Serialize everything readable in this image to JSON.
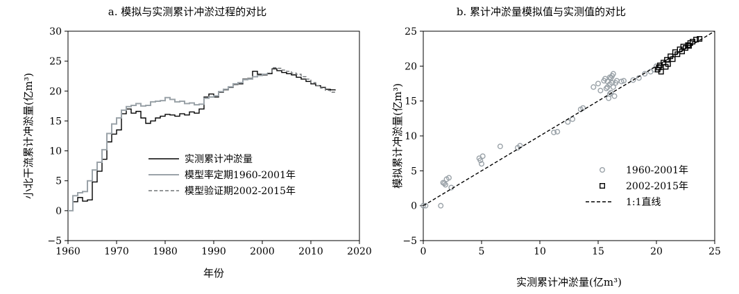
{
  "chart_data": [
    {
      "type": "line",
      "title": "a. 模拟与实测累计冲淤过程的对比",
      "xlabel": "年份",
      "ylabel": "小北干流累计冲淤量(亿m³)",
      "xlim": [
        1960,
        2020
      ],
      "ylim": [
        -5,
        30
      ],
      "xticks": [
        1960,
        1970,
        1980,
        1990,
        2000,
        2010,
        2020
      ],
      "yticks": [
        -5,
        0,
        5,
        10,
        15,
        20,
        25,
        30
      ],
      "legend_position": "center-right",
      "series": [
        {
          "name": "实测累计冲淤量",
          "color": "#000000",
          "style": "solid",
          "x": [
            1960,
            1961,
            1962,
            1963,
            1964,
            1965,
            1966,
            1967,
            1968,
            1969,
            1970,
            1971,
            1972,
            1973,
            1974,
            1975,
            1976,
            1977,
            1978,
            1979,
            1980,
            1981,
            1982,
            1983,
            1984,
            1985,
            1986,
            1987,
            1988,
            1989,
            1990,
            1991,
            1992,
            1993,
            1994,
            1995,
            1996,
            1997,
            1998,
            1999,
            2000,
            2001,
            2002,
            2003,
            2004,
            2005,
            2006,
            2007,
            2008,
            2009,
            2010,
            2011,
            2012,
            2013,
            2014,
            2015
          ],
          "y": [
            0.0,
            1.5,
            2.2,
            1.6,
            1.8,
            4.8,
            6.6,
            8.6,
            11.5,
            12.8,
            13.5,
            16.2,
            17.0,
            16.3,
            16.6,
            15.5,
            14.6,
            15.0,
            15.5,
            15.8,
            16.1,
            16.0,
            15.8,
            16.2,
            16.0,
            16.5,
            16.3,
            17.0,
            19.0,
            19.5,
            19.0,
            19.8,
            20.2,
            20.6,
            21.1,
            21.2,
            22.0,
            22.1,
            23.3,
            22.8,
            22.7,
            22.9,
            23.7,
            23.4,
            23.1,
            22.9,
            22.7,
            22.3,
            22.0,
            21.6,
            21.2,
            20.9,
            20.6,
            20.3,
            20.2,
            20.1
          ]
        },
        {
          "name": "模型率定期1960-2001年",
          "color": "#9aa2a8",
          "style": "solid",
          "x": [
            1960,
            1961,
            1962,
            1963,
            1964,
            1965,
            1966,
            1967,
            1968,
            1969,
            1970,
            1971,
            1972,
            1973,
            1974,
            1975,
            1976,
            1977,
            1978,
            1979,
            1980,
            1981,
            1982,
            1983,
            1984,
            1985,
            1986,
            1987,
            1988,
            1989,
            1990,
            1991,
            1992,
            1993,
            1994,
            1995,
            1996,
            1997,
            1998,
            1999,
            2000,
            2001
          ],
          "y": [
            0.0,
            2.5,
            3.0,
            3.2,
            5.0,
            6.8,
            8.1,
            10.2,
            12.9,
            14.5,
            15.5,
            16.8,
            17.4,
            17.6,
            17.9,
            17.5,
            17.6,
            18.2,
            18.3,
            18.4,
            18.9,
            18.6,
            18.2,
            18.3,
            17.9,
            18.0,
            17.7,
            17.8,
            18.8,
            19.0,
            19.2,
            19.9,
            20.3,
            20.7,
            21.2,
            21.4,
            21.9,
            22.0,
            22.4,
            22.6,
            22.8,
            23.0
          ]
        },
        {
          "name": "模型验证期2002-2015年",
          "color": "#6e7275",
          "style": "dashed",
          "x": [
            2001,
            2002,
            2003,
            2004,
            2005,
            2006,
            2007,
            2008,
            2009,
            2010,
            2011,
            2012,
            2013,
            2014,
            2015
          ],
          "y": [
            23.0,
            23.9,
            23.8,
            23.5,
            23.3,
            23.0,
            22.8,
            22.4,
            22.0,
            21.4,
            20.9,
            20.5,
            20.1,
            19.8,
            19.5
          ]
        }
      ]
    },
    {
      "type": "scatter",
      "title": "b. 累计冲淤量模拟值与实测值的对比",
      "xlabel": "实测累计冲淤量(亿m³)",
      "ylabel": "模拟累计冲淤量(亿m³)",
      "xlim": [
        0,
        25
      ],
      "ylim": [
        -5,
        25
      ],
      "xticks": [
        0,
        5,
        10,
        15,
        20,
        25
      ],
      "yticks": [
        -5,
        0,
        5,
        10,
        15,
        20,
        25
      ],
      "legend_position": "bottom-right",
      "series": [
        {
          "name": "1960-2001年",
          "color": "#9aa2a8",
          "marker": "circle",
          "x": [
            0.0,
            0.2,
            1.5,
            1.8,
            2.0,
            2.2,
            1.9,
            1.7,
            2.4,
            4.8,
            5.0,
            4.9,
            5.1,
            6.6,
            8.1,
            8.3,
            11.2,
            11.5,
            12.4,
            12.8,
            13.5,
            13.7,
            14.6,
            15.0,
            15.2,
            15.5,
            15.6,
            15.8,
            15.8,
            16.0,
            16.0,
            16.1,
            16.2,
            16.2,
            16.3,
            16.3,
            16.5,
            16.6,
            16.0,
            15.9,
            16.4,
            15.7,
            16.1,
            17.0,
            17.2,
            18.0,
            18.5,
            19.0,
            19.5,
            19.8,
            20.0
          ],
          "y": [
            0.0,
            0.0,
            0.0,
            3.2,
            3.8,
            4.0,
            3.0,
            3.3,
            2.6,
            6.8,
            6.0,
            6.5,
            7.1,
            8.5,
            8.3,
            8.6,
            10.5,
            10.6,
            12.0,
            12.4,
            13.8,
            14.0,
            17.0,
            17.5,
            16.5,
            17.9,
            18.2,
            17.8,
            17.0,
            18.4,
            17.4,
            18.3,
            18.6,
            17.6,
            18.9,
            17.0,
            17.6,
            17.9,
            16.0,
            15.4,
            15.7,
            16.8,
            16.2,
            17.8,
            17.9,
            18.0,
            18.3,
            18.9,
            19.2,
            19.5,
            20.0
          ]
        },
        {
          "name": "2002-2015年",
          "color": "#000000",
          "marker": "square",
          "x": [
            20.1,
            20.2,
            20.3,
            20.6,
            20.9,
            21.2,
            21.6,
            22.0,
            22.3,
            22.7,
            22.9,
            23.1,
            23.4,
            23.7,
            20.4,
            20.8,
            21.0,
            21.4,
            21.8,
            22.2,
            22.5,
            22.8
          ],
          "y": [
            19.5,
            19.8,
            20.1,
            20.5,
            20.9,
            21.4,
            22.0,
            22.4,
            22.8,
            23.0,
            23.3,
            23.5,
            23.8,
            23.9,
            19.2,
            19.9,
            20.3,
            21.0,
            21.7,
            22.1,
            22.6,
            22.9
          ]
        },
        {
          "name": "1:1直线",
          "color": "#000000",
          "style": "dashed",
          "x": [
            0,
            25
          ],
          "y": [
            0,
            25
          ]
        }
      ]
    }
  ]
}
